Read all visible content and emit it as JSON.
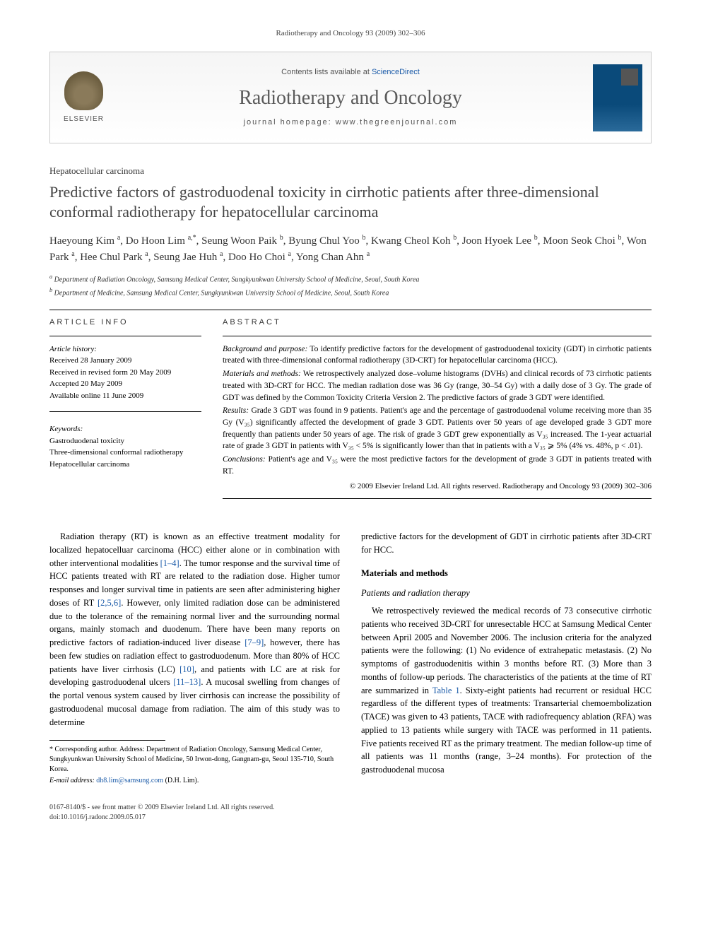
{
  "journal_ref": "Radiotherapy and Oncology 93 (2009) 302–306",
  "masthead": {
    "publisher_label": "ELSEVIER",
    "contents_prefix": "Contents lists available at ",
    "contents_link": "ScienceDirect",
    "journal_name": "Radiotherapy and Oncology",
    "homepage_prefix": "journal homepage: ",
    "homepage_url": "www.thegreenjournal.com",
    "cover_title": "Radiotherapy & Oncology"
  },
  "section_tag": "Hepatocellular carcinoma",
  "title": "Predictive factors of gastroduodenal toxicity in cirrhotic patients after three-dimensional conformal radiotherapy for hepatocellular carcinoma",
  "authors_html": "Haeyoung Kim <sup>a</sup>, Do Hoon Lim <sup>a,*</sup>, Seung Woon Paik <sup>b</sup>, Byung Chul Yoo <sup>b</sup>, Kwang Cheol Koh <sup>b</sup>, Joon Hyoek Lee <sup>b</sup>, Moon Seok Choi <sup>b</sup>, Won Park <sup>a</sup>, Hee Chul Park <sup>a</sup>, Seung Jae Huh <sup>a</sup>, Doo Ho Choi <sup>a</sup>, Yong Chan Ahn <sup>a</sup>",
  "affiliations": [
    {
      "sup": "a",
      "text": "Department of Radiation Oncology, Samsung Medical Center, Sungkyunkwan University School of Medicine, Seoul, South Korea"
    },
    {
      "sup": "b",
      "text": "Department of Medicine, Samsung Medical Center, Sungkyunkwan University School of Medicine, Seoul, South Korea"
    }
  ],
  "info": {
    "head": "ARTICLE INFO",
    "history_head": "Article history:",
    "history": [
      "Received 28 January 2009",
      "Received in revised form 20 May 2009",
      "Accepted 20 May 2009",
      "Available online 11 June 2009"
    ],
    "keywords_head": "Keywords:",
    "keywords": [
      "Gastroduodenal toxicity",
      "Three-dimensional conformal radiotherapy",
      "Hepatocellular carcinoma"
    ]
  },
  "abstract": {
    "head": "ABSTRACT",
    "bg_label": "Background and purpose:",
    "bg": "To identify predictive factors for the development of gastroduodenal toxicity (GDT) in cirrhotic patients treated with three-dimensional conformal radiotherapy (3D-CRT) for hepatocellular carcinoma (HCC).",
    "mm_label": "Materials and methods:",
    "mm": "We retrospectively analyzed dose–volume histograms (DVHs) and clinical records of 73 cirrhotic patients treated with 3D-CRT for HCC. The median radiation dose was 36 Gy (range, 30–54 Gy) with a daily dose of 3 Gy. The grade of GDT was defined by the Common Toxicity Criteria Version 2. The predictive factors of grade 3 GDT were identified.",
    "res_label": "Results:",
    "res": "Grade 3 GDT was found in 9 patients. Patient's age and the percentage of gastroduodenal volume receiving more than 35 Gy (V₃₅) significantly affected the development of grade 3 GDT. Patients over 50 years of age developed grade 3 GDT more frequently than patients under 50 years of age. The risk of grade 3 GDT grew exponentially as V₃₅ increased. The 1-year actuarial rate of grade 3 GDT in patients with V₃₅ < 5% is significantly lower than that in patients with a V₃₅ ⩾ 5% (4% vs. 48%, p < .01).",
    "con_label": "Conclusions:",
    "con": "Patient's age and V₃₅ were the most predictive factors for the development of grade 3 GDT in patients treated with RT.",
    "copyright": "© 2009 Elsevier Ireland Ltd. All rights reserved. Radiotherapy and Oncology 93 (2009) 302–306"
  },
  "body": {
    "left_p1_pre": "Radiation therapy (RT) is known as an effective treatment modality for localized hepatocelluar carcinoma (HCC) either alone or in combination with other interventional modalities ",
    "left_ref1": "[1–4]",
    "left_p1_mid1": ". The tumor response and the survival time of HCC patients treated with RT are related to the radiation dose. Higher tumor responses and longer survival time in patients are seen after administering higher doses of RT ",
    "left_ref2": "[2,5,6]",
    "left_p1_mid2": ". However, only limited radiation dose can be administered due to the tolerance of the remaining normal liver and the surrounding normal organs, mainly stomach and duodenum. There have been many reports on predictive factors of radiation-induced liver disease ",
    "left_ref3": "[7–9]",
    "left_p1_mid3": ", however, there has been few studies on radiation effect to gastroduodenum. More than 80% of HCC patients have liver cirrhosis (LC) ",
    "left_ref4": "[10]",
    "left_p1_mid4": ", and patients with LC are at risk for developing gastroduodenal ulcers ",
    "left_ref5": "[11–13]",
    "left_p1_post": ". A mucosal swelling from changes of the portal venous system caused by liver cirrhosis can increase the possibility of gastroduodenal mucosal damage from radiation. The aim of this study was to determine",
    "right_p1": "predictive factors for the development of GDT in cirrhotic patients after 3D-CRT for HCC.",
    "right_h1": "Materials and methods",
    "right_h2": "Patients and radiation therapy",
    "right_p2_pre": "We retrospectively reviewed the medical records of 73 consecutive cirrhotic patients who received 3D-CRT for unresectable HCC at Samsung Medical Center between April 2005 and November 2006. The inclusion criteria for the analyzed patients were the following: (1) No evidence of extrahepatic metastasis. (2) No symptoms of gastroduodenitis within 3 months before RT. (3) More than 3 months of follow-up periods. The characteristics of the patients at the time of RT are summarized in ",
    "right_ref_table": "Table 1",
    "right_p2_post": ". Sixty-eight patients had recurrent or residual HCC regardless of the different types of treatments: Transarterial chemoembolization (TACE) was given to 43 patients, TACE with radiofrequency ablation (RFA) was applied to 13 patients while surgery with TACE was performed in 11 patients. Five patients received RT as the primary treatment. The median follow-up time of all patients was 11 months (range, 3–24 months). For protection of the gastroduodenal mucosa"
  },
  "footnote": {
    "corr_label": "* Corresponding author.",
    "corr_text": "Address: Department of Radiation Oncology, Samsung Medical Center, Sungkyunkwan University School of Medicine, 50 Irwon-dong, Gangnam-gu, Seoul 135-710, South Korea.",
    "email_label": "E-mail address:",
    "email": "dh8.lim@samsung.com",
    "email_who": "(D.H. Lim)."
  },
  "footer": {
    "left1": "0167-8140/$ - see front matter © 2009 Elsevier Ireland Ltd. All rights reserved.",
    "left2": "doi:10.1016/j.radonc.2009.05.017"
  },
  "colors": {
    "link": "#1a5aa8",
    "text": "#000000",
    "muted": "#555555",
    "journal_name": "#5a5a5a",
    "cover_bg": "#0a4a7a"
  }
}
